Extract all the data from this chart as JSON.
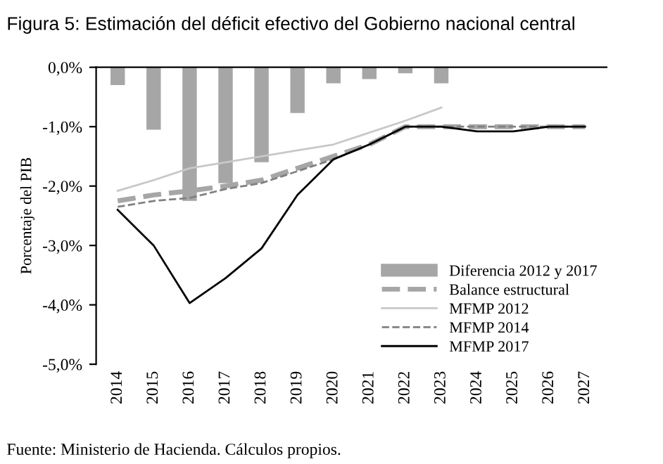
{
  "chart_data": {
    "type": "line",
    "title": "Figura 5: Estimación del déficit efectivo del Gobierno nacional central",
    "ylabel": "Porcentaje del PIB",
    "annotations": [
      "Fuente: Ministerio de Hacienda. Cálculos propios."
    ],
    "categories": [
      "2014",
      "2015",
      "2016",
      "2017",
      "2018",
      "2019",
      "2020",
      "2021",
      "2022",
      "2023",
      "2024",
      "2025",
      "2026",
      "2027"
    ],
    "series": [
      {
        "name": "Diferencia 2012 y 2017",
        "type": "bar",
        "color": "#a6a6a6",
        "values": [
          -0.3,
          -1.05,
          -2.25,
          -1.95,
          -1.6,
          -0.77,
          -0.27,
          -0.2,
          -0.1,
          -0.27,
          null,
          null,
          null,
          null
        ]
      },
      {
        "name": "Balance estructural",
        "color": "#a6a6a6",
        "line_style": "dashed",
        "values": [
          -2.25,
          -2.15,
          -2.08,
          -2.0,
          -1.9,
          -1.7,
          -1.5,
          -1.3,
          -1.0,
          -1.0,
          -1.0,
          -1.0,
          -1.0,
          -1.0
        ]
      },
      {
        "name": "MFMP 2012",
        "color": "#c8c8c8",
        "line_style": "solid",
        "values": [
          -2.08,
          -1.9,
          -1.7,
          -1.6,
          -1.5,
          -1.4,
          -1.3,
          -1.1,
          -0.9,
          -0.68,
          null,
          null,
          null,
          null
        ]
      },
      {
        "name": "MFMP 2014",
        "color": "#808080",
        "line_style": "dashed",
        "values": [
          -2.35,
          -2.25,
          -2.2,
          -2.05,
          -1.95,
          -1.75,
          -1.55,
          -1.3,
          -1.0,
          -1.0,
          -1.0,
          -1.0,
          -1.0,
          -1.0
        ]
      },
      {
        "name": "MFMP 2017",
        "color": "#000000",
        "line_style": "solid",
        "values": [
          -2.4,
          -3.0,
          -3.97,
          -3.55,
          -3.05,
          -2.15,
          -1.55,
          -1.3,
          -1.0,
          -1.0,
          -1.08,
          -1.08,
          -1.0,
          -1.0
        ]
      }
    ],
    "ylim": [
      -5.0,
      0.0
    ],
    "yticks": [
      {
        "value": 0.0,
        "label": "0,0%"
      },
      {
        "value": -1.0,
        "label": "-1,0%"
      },
      {
        "value": -2.0,
        "label": "-2,0%"
      },
      {
        "value": -3.0,
        "label": "-3,0%"
      },
      {
        "value": -4.0,
        "label": "-4,0%"
      },
      {
        "value": -5.0,
        "label": "-5,0%"
      }
    ],
    "grid": false,
    "legend": "bottom right"
  }
}
